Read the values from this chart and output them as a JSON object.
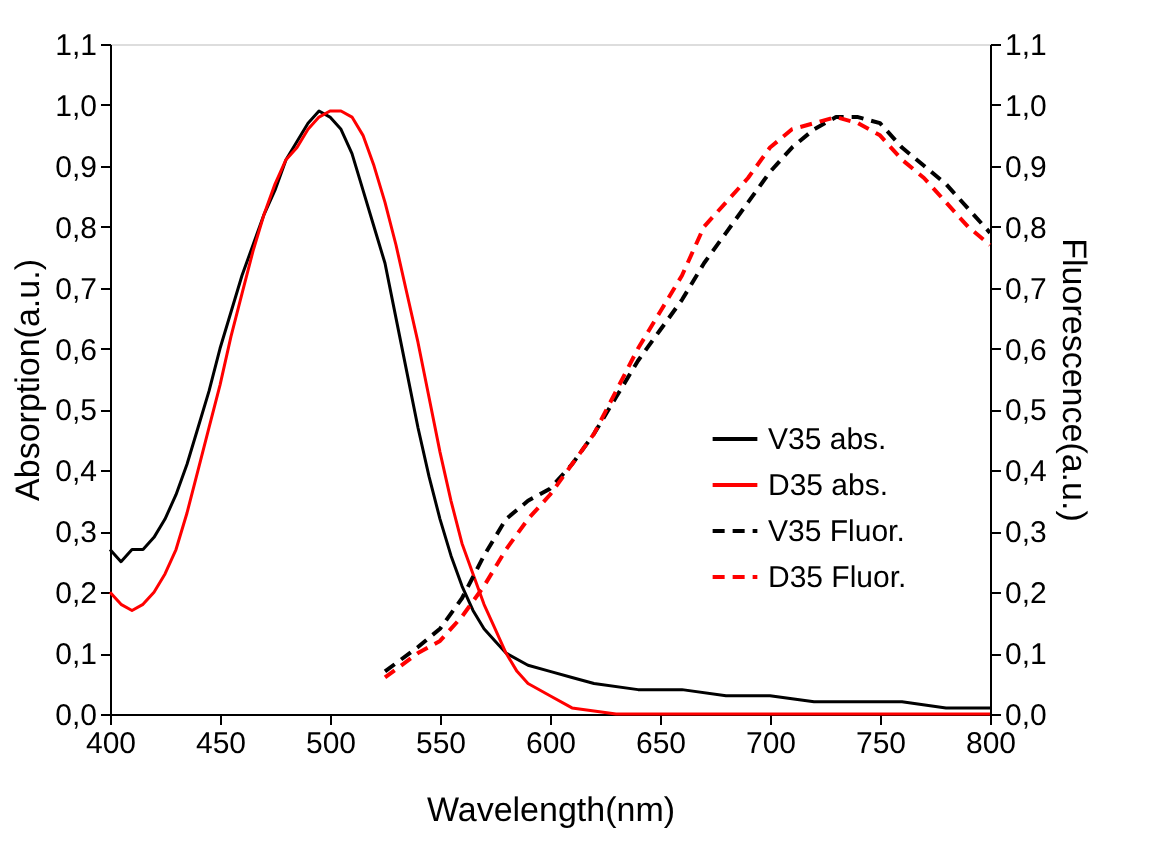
{
  "chart_data": {
    "type": "line",
    "xlabel": "Wavelength(nm)",
    "ylabel": "Absorption(a.u.)",
    "y2label": "Fluorescence(a.u.)",
    "xlim": [
      400,
      800
    ],
    "xticks": [
      400,
      450,
      500,
      550,
      600,
      650,
      700,
      750,
      800
    ],
    "ylim": [
      0,
      1.1
    ],
    "yticks": [
      {
        "value": 0,
        "label": "0,0"
      },
      {
        "value": 0.1,
        "label": "0,1"
      },
      {
        "value": 0.2,
        "label": "0,2"
      },
      {
        "value": 0.3,
        "label": "0,3"
      },
      {
        "value": 0.4,
        "label": "0,4"
      },
      {
        "value": 0.5,
        "label": "0,5"
      },
      {
        "value": 0.6,
        "label": "0,6"
      },
      {
        "value": 0.7,
        "label": "0,7"
      },
      {
        "value": 0.8,
        "label": "0,8"
      },
      {
        "value": 0.9,
        "label": "0,9"
      },
      {
        "value": 1.0,
        "label": "1,0"
      },
      {
        "value": 1.1,
        "label": "1,1"
      }
    ],
    "y2lim": [
      0,
      1.1
    ],
    "y2ticks": [
      {
        "value": 0,
        "label": "0,0"
      },
      {
        "value": 0.1,
        "label": "0,1"
      },
      {
        "value": 0.2,
        "label": "0,2"
      },
      {
        "value": 0.3,
        "label": "0,3"
      },
      {
        "value": 0.4,
        "label": "0,4"
      },
      {
        "value": 0.5,
        "label": "0,5"
      },
      {
        "value": 0.6,
        "label": "0,6"
      },
      {
        "value": 0.7,
        "label": "0,7"
      },
      {
        "value": 0.8,
        "label": "0,8"
      },
      {
        "value": 0.9,
        "label": "0,9"
      },
      {
        "value": 1.0,
        "label": "1,0"
      },
      {
        "value": 1.1,
        "label": "1,1"
      }
    ],
    "legend": "right",
    "grid": false,
    "series": [
      {
        "name": "V35 abs.",
        "color": "#000000",
        "line_style": "solid",
        "x": [
          400,
          405,
          410,
          415,
          420,
          425,
          430,
          435,
          440,
          445,
          450,
          455,
          460,
          465,
          470,
          475,
          480,
          485,
          490,
          495,
          500,
          505,
          510,
          515,
          520,
          525,
          530,
          535,
          540,
          545,
          550,
          555,
          560,
          565,
          570,
          575,
          580,
          590,
          600,
          610,
          620,
          640,
          660,
          680,
          700,
          720,
          740,
          760,
          780,
          800
        ],
        "values": [
          0.27,
          0.25,
          0.27,
          0.27,
          0.29,
          0.32,
          0.36,
          0.41,
          0.47,
          0.53,
          0.6,
          0.66,
          0.72,
          0.77,
          0.82,
          0.86,
          0.91,
          0.94,
          0.97,
          0.99,
          0.98,
          0.96,
          0.92,
          0.86,
          0.8,
          0.74,
          0.65,
          0.56,
          0.47,
          0.39,
          0.32,
          0.26,
          0.21,
          0.17,
          0.14,
          0.12,
          0.1,
          0.08,
          0.07,
          0.06,
          0.05,
          0.04,
          0.04,
          0.03,
          0.03,
          0.02,
          0.02,
          0.02,
          0.01,
          0.01
        ]
      },
      {
        "name": "D35 abs.",
        "color": "#ff0000",
        "line_style": "solid",
        "x": [
          400,
          405,
          410,
          415,
          420,
          425,
          430,
          435,
          440,
          445,
          450,
          455,
          460,
          465,
          470,
          475,
          480,
          485,
          490,
          495,
          500,
          505,
          510,
          515,
          520,
          525,
          530,
          535,
          540,
          545,
          550,
          555,
          560,
          565,
          570,
          575,
          580,
          585,
          590,
          600,
          610,
          620,
          630,
          650,
          700,
          750,
          800
        ],
        "values": [
          0.2,
          0.18,
          0.17,
          0.18,
          0.2,
          0.23,
          0.27,
          0.33,
          0.4,
          0.47,
          0.54,
          0.62,
          0.69,
          0.76,
          0.82,
          0.87,
          0.91,
          0.93,
          0.96,
          0.98,
          0.99,
          0.99,
          0.98,
          0.95,
          0.9,
          0.84,
          0.77,
          0.69,
          0.61,
          0.52,
          0.43,
          0.35,
          0.28,
          0.23,
          0.18,
          0.14,
          0.1,
          0.07,
          0.05,
          0.03,
          0.01,
          0.005,
          0,
          0,
          0,
          0,
          0
        ]
      },
      {
        "name": "V35 Fluor.",
        "color": "#000000",
        "line_style": "dashed",
        "axis": "y2",
        "x": [
          525,
          540,
          550,
          560,
          570,
          580,
          590,
          600,
          610,
          620,
          630,
          640,
          650,
          660,
          670,
          680,
          690,
          700,
          710,
          720,
          730,
          740,
          750,
          760,
          770,
          780,
          790,
          800
        ],
        "values": [
          0.07,
          0.11,
          0.14,
          0.19,
          0.26,
          0.32,
          0.35,
          0.37,
          0.41,
          0.46,
          0.52,
          0.58,
          0.63,
          0.68,
          0.74,
          0.79,
          0.84,
          0.89,
          0.93,
          0.96,
          0.98,
          0.98,
          0.97,
          0.93,
          0.9,
          0.87,
          0.83,
          0.79
        ]
      },
      {
        "name": "D35 Fluor.",
        "color": "#ff0000",
        "line_style": "dashed",
        "axis": "y2",
        "x": [
          525,
          540,
          550,
          560,
          570,
          580,
          590,
          600,
          610,
          620,
          630,
          640,
          650,
          660,
          670,
          680,
          690,
          700,
          710,
          720,
          730,
          740,
          750,
          760,
          770,
          780,
          790,
          800
        ],
        "values": [
          0.06,
          0.1,
          0.12,
          0.16,
          0.21,
          0.27,
          0.32,
          0.36,
          0.41,
          0.46,
          0.53,
          0.6,
          0.66,
          0.72,
          0.8,
          0.84,
          0.88,
          0.93,
          0.96,
          0.97,
          0.98,
          0.97,
          0.95,
          0.91,
          0.88,
          0.84,
          0.8,
          0.77
        ]
      }
    ]
  }
}
